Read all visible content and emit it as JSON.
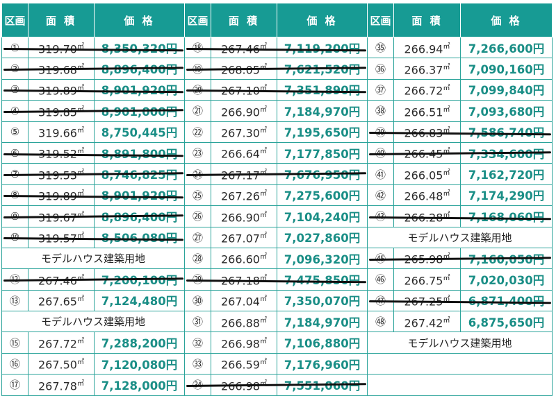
{
  "headers": {
    "lot": "区画",
    "area": "面 積",
    "price": "価 格"
  },
  "unit": "㎡",
  "columns": [
    {
      "rows": [
        {
          "type": "lot",
          "lot": "①",
          "area": "319.70",
          "price": "8,350,320円",
          "sold": true
        },
        {
          "type": "lot",
          "lot": "②",
          "area": "319.68",
          "price": "8,896,400円",
          "sold": true
        },
        {
          "type": "lot",
          "lot": "③",
          "area": "319.89",
          "price": "8,901,920円",
          "sold": true
        },
        {
          "type": "lot",
          "lot": "④",
          "area": "319.85",
          "price": "8,901,000円",
          "sold": true
        },
        {
          "type": "lot",
          "lot": "⑤",
          "area": "319.66",
          "price": "8,750,445円",
          "sold": false
        },
        {
          "type": "lot",
          "lot": "⑥",
          "area": "319.52",
          "price": "8,891,800円",
          "sold": true
        },
        {
          "type": "lot",
          "lot": "⑦",
          "area": "319.53",
          "price": "8,746,825円",
          "sold": true
        },
        {
          "type": "lot",
          "lot": "⑧",
          "area": "319.89",
          "price": "8,901,920円",
          "sold": true
        },
        {
          "type": "lot",
          "lot": "⑨",
          "area": "319.67",
          "price": "8,896,400円",
          "sold": true
        },
        {
          "type": "lot",
          "lot": "⑩",
          "area": "319.57",
          "price": "8,506,080円",
          "sold": true
        },
        {
          "type": "note",
          "text": "モデルハウス建築用地"
        },
        {
          "type": "lot",
          "lot": "⑫",
          "area": "267.46",
          "price": "7,200,100円",
          "sold": true
        },
        {
          "type": "lot",
          "lot": "⑬",
          "area": "267.65",
          "price": "7,124,480円",
          "sold": false
        },
        {
          "type": "note",
          "text": "モデルハウス建築用地"
        },
        {
          "type": "lot",
          "lot": "⑮",
          "area": "267.72",
          "price": "7,288,200円",
          "sold": false
        },
        {
          "type": "lot",
          "lot": "⑯",
          "area": "267.50",
          "price": "7,120,080円",
          "sold": false
        },
        {
          "type": "lot",
          "lot": "⑰",
          "area": "267.78",
          "price": "7,128,000円",
          "sold": false
        }
      ]
    },
    {
      "rows": [
        {
          "type": "lot",
          "lot": "⑱",
          "area": "267.46",
          "price": "7,119,200円",
          "sold": true
        },
        {
          "type": "lot",
          "lot": "⑲",
          "area": "268.05",
          "price": "7,621,520円",
          "sold": true
        },
        {
          "type": "lot",
          "lot": "⑳",
          "area": "267.10",
          "price": "7,351,890円",
          "sold": true
        },
        {
          "type": "lot",
          "lot": "㉑",
          "area": "266.90",
          "price": "7,184,970円",
          "sold": false
        },
        {
          "type": "lot",
          "lot": "㉒",
          "area": "267.30",
          "price": "7,195,650円",
          "sold": false
        },
        {
          "type": "lot",
          "lot": "㉓",
          "area": "266.64",
          "price": "7,177,850円",
          "sold": false
        },
        {
          "type": "lot",
          "lot": "㉔",
          "area": "267.17",
          "price": "7,676,950円",
          "sold": true
        },
        {
          "type": "lot",
          "lot": "㉕",
          "area": "267.26",
          "price": "7,275,600円",
          "sold": false
        },
        {
          "type": "lot",
          "lot": "㉖",
          "area": "266.90",
          "price": "7,104,240円",
          "sold": false
        },
        {
          "type": "lot",
          "lot": "㉗",
          "area": "267.07",
          "price": "7,027,860円",
          "sold": false
        },
        {
          "type": "lot",
          "lot": "㉘",
          "area": "266.60",
          "price": "7,096,320円",
          "sold": false
        },
        {
          "type": "lot",
          "lot": "㉙",
          "area": "267.18",
          "price": "7,475,850円",
          "sold": true
        },
        {
          "type": "lot",
          "lot": "㉚",
          "area": "267.04",
          "price": "7,350,070円",
          "sold": false
        },
        {
          "type": "lot",
          "lot": "㉛",
          "area": "266.88",
          "price": "7,184,970円",
          "sold": false
        },
        {
          "type": "lot",
          "lot": "㉜",
          "area": "266.98",
          "price": "7,106,880円",
          "sold": false
        },
        {
          "type": "lot",
          "lot": "㉝",
          "area": "266.59",
          "price": "7,176,960円",
          "sold": false
        },
        {
          "type": "lot",
          "lot": "㉞",
          "area": "266.98",
          "price": "7,551,060円",
          "sold": true
        }
      ]
    },
    {
      "rows": [
        {
          "type": "lot",
          "lot": "㉟",
          "area": "266.94",
          "price": "7,266,600円",
          "sold": false
        },
        {
          "type": "lot",
          "lot": "㊱",
          "area": "266.37",
          "price": "7,090,160円",
          "sold": false
        },
        {
          "type": "lot",
          "lot": "㊲",
          "area": "266.72",
          "price": "7,099,840円",
          "sold": false
        },
        {
          "type": "lot",
          "lot": "㊳",
          "area": "266.51",
          "price": "7,093,680円",
          "sold": false
        },
        {
          "type": "lot",
          "lot": "㊴",
          "area": "266.83",
          "price": "7,586,740円",
          "sold": true
        },
        {
          "type": "lot",
          "lot": "㊵",
          "area": "266.45",
          "price": "7,334,600円",
          "sold": true
        },
        {
          "type": "lot",
          "lot": "㊶",
          "area": "266.05",
          "price": "7,162,720円",
          "sold": false
        },
        {
          "type": "lot",
          "lot": "㊷",
          "area": "266.48",
          "price": "7,174,290円",
          "sold": false
        },
        {
          "type": "lot",
          "lot": "㊸",
          "area": "266.28",
          "price": "7,168,060円",
          "sold": true
        },
        {
          "type": "note",
          "text": "モデルハウス建築用地"
        },
        {
          "type": "lot",
          "lot": "㊺",
          "area": "265.98",
          "price": "7,160,050円",
          "sold": true
        },
        {
          "type": "lot",
          "lot": "㊻",
          "area": "266.75",
          "price": "7,020,030円",
          "sold": false
        },
        {
          "type": "lot",
          "lot": "㊼",
          "area": "267.25",
          "price": "6,871,400円",
          "sold": true
        },
        {
          "type": "lot",
          "lot": "㊽",
          "area": "267.42",
          "price": "6,875,650円",
          "sold": false
        },
        {
          "type": "note",
          "text": "モデルハウス建築用地"
        },
        {
          "type": "blank"
        },
        {
          "type": "blank"
        }
      ]
    }
  ]
}
